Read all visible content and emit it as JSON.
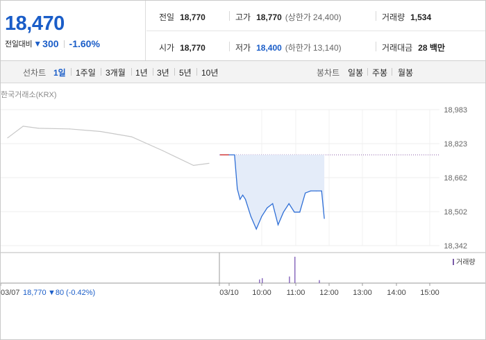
{
  "summary": {
    "price": "18,470",
    "change_label": "전일대비",
    "change_value": "300",
    "change_pct": "-1.60%",
    "prev_close_label": "전일",
    "prev_close": "18,770",
    "high_label": "고가",
    "high": "18,770",
    "upper_limit_label": "(상한가",
    "upper_limit": "24,400)",
    "volume_label": "거래량",
    "volume": "1,534",
    "open_label": "시가",
    "open": "18,770",
    "low_label": "저가",
    "low": "18,400",
    "lower_limit_label": "(하한가",
    "lower_limit": "13,140)",
    "amount_label": "거래대금",
    "amount": "28 백만"
  },
  "periods": {
    "line_label": "선차트",
    "items": [
      "1일",
      "1주일",
      "3개월",
      "1년",
      "3년",
      "5년",
      "10년"
    ],
    "active": "1일",
    "candle_label": "봉차트",
    "candle_items": [
      "일봉",
      "주봉",
      "월봉"
    ]
  },
  "chart_data": {
    "type": "line",
    "source_label": "한국거래소(KRX)",
    "yticks": [
      "18,983",
      "18,823",
      "18,662",
      "18,502",
      "18,342"
    ],
    "ylim": [
      18342,
      18983
    ],
    "xticks": [
      "03/07",
      "03/10",
      "10:00",
      "11:00",
      "12:00",
      "13:00",
      "14:00",
      "15:00"
    ],
    "prev_close": 18770,
    "volume_legend": "거래량",
    "footer": {
      "date": "03/07",
      "price": "18,770",
      "change": "▼80",
      "pct": "(-0.42%)"
    },
    "series": [
      {
        "x": [
          "03/07 09:00",
          "03/07 09:30",
          "03/07 10:00",
          "03/07 11:00",
          "03/07 12:00",
          "03/07 13:00",
          "03/07 14:00",
          "03/07 15:00",
          "03/07 15:30"
        ],
        "y": [
          18850,
          18905,
          18895,
          18892,
          18880,
          18855,
          18790,
          18720,
          18730
        ]
      },
      {
        "x": [
          "09:00",
          "09:05",
          "09:10",
          "09:15",
          "09:20",
          "09:25",
          "09:30",
          "09:40",
          "09:50",
          "10:00",
          "10:10",
          "10:20",
          "10:30",
          "10:40",
          "10:50",
          "11:00",
          "11:10",
          "11:20",
          "11:30",
          "11:40",
          "11:50",
          "11:55"
        ],
        "y": [
          18770,
          18770,
          18770,
          18610,
          18560,
          18580,
          18560,
          18480,
          18420,
          18480,
          18520,
          18540,
          18440,
          18500,
          18540,
          18500,
          18500,
          18590,
          18600,
          18600,
          18600,
          18470
        ]
      }
    ],
    "volume": [
      {
        "x": "11:00",
        "v": 160
      },
      {
        "x": "10:50",
        "v": 40
      },
      {
        "x": "10:00",
        "v": 30
      },
      {
        "x": "09:55",
        "v": 22
      },
      {
        "x": "11:45",
        "v": 18
      }
    ]
  }
}
